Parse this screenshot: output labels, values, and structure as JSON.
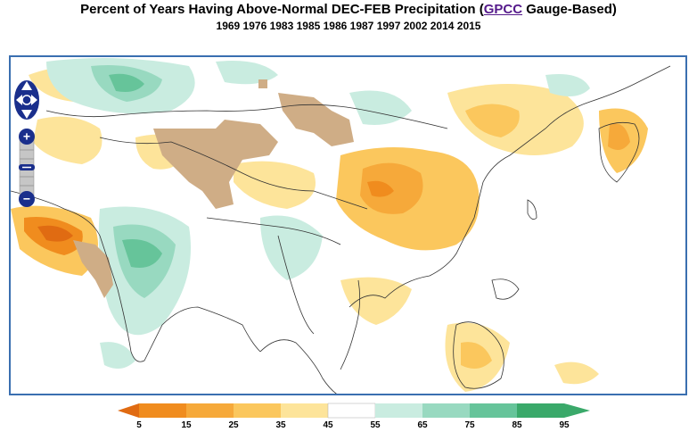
{
  "header": {
    "title_prefix": "Percent of Years Having Above-Normal DEC-FEB Precipitation (",
    "title_link": "GPCC",
    "title_suffix": " Gauge-Based)",
    "years": "1969 1976 1983 1985 1986 1987 1997 2002 2014 2015"
  },
  "map_controls": {
    "pan": "pan-control",
    "zoom_in": "+",
    "zoom_out": "−"
  },
  "legend": {
    "ticks": [
      "5",
      "15",
      "25",
      "35",
      "45",
      "55",
      "65",
      "75",
      "85",
      "95"
    ],
    "colors": {
      "lt5": "#e06b12",
      "5_15": "#f08c1e",
      "15_25": "#f6a93a",
      "25_35": "#fbc75d",
      "35_45": "#fde49a",
      "45_55": "#ffffff",
      "55_65": "#c9ece0",
      "65_75": "#98d9c0",
      "75_85": "#66c49a",
      "gt85": "#3aa96a"
    },
    "missing_color": "#cfad86"
  }
}
